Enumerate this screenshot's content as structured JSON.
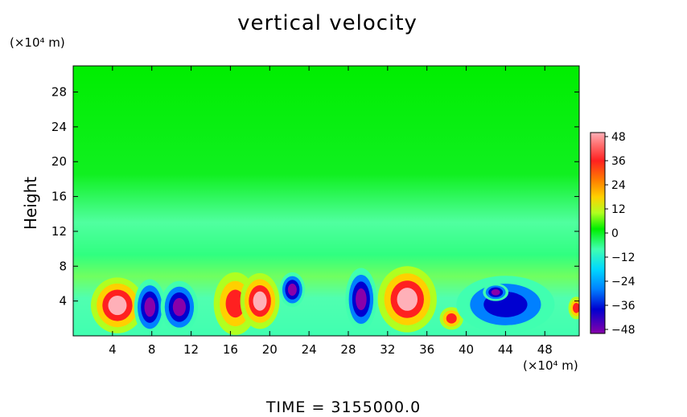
{
  "chart_data": {
    "type": "heatmap",
    "title": "vertical velocity",
    "ylabel": "Height",
    "x_units": "(×10⁴ m)",
    "y_units": "(×10⁴ m)",
    "footer": "TIME  =  3155000.0",
    "xlim": [
      0,
      51.5
    ],
    "ylim": [
      0,
      31
    ],
    "x_ticks": [
      4,
      8,
      12,
      16,
      20,
      24,
      28,
      32,
      36,
      40,
      44,
      48
    ],
    "y_ticks": [
      4,
      8,
      12,
      16,
      20,
      24,
      28
    ],
    "colorbar": {
      "ticks": [
        48,
        36,
        24,
        12,
        0,
        -12,
        -24,
        -36,
        -48
      ],
      "range": [
        -48,
        48
      ],
      "colors": [
        "#ffb0b8",
        "#ff2020",
        "#ff8000",
        "#ffd000",
        "#b0ff20",
        "#00ee00",
        "#40ffb0",
        "#00d8ff",
        "#0080ff",
        "#0000d0",
        "#8800aa"
      ]
    },
    "features": [
      {
        "x": 4.5,
        "y": 3.5,
        "rx": 2.7,
        "ry": 3.2,
        "value": 48
      },
      {
        "x": 7.8,
        "y": 3.3,
        "rx": 1.6,
        "ry": 3.2,
        "value": -48
      },
      {
        "x": 10.8,
        "y": 3.3,
        "rx": 1.9,
        "ry": 3.0,
        "value": -48
      },
      {
        "x": 16.5,
        "y": 3.7,
        "rx": 2.2,
        "ry": 3.6,
        "value": 40
      },
      {
        "x": 19.0,
        "y": 4.0,
        "rx": 2.0,
        "ry": 3.2,
        "value": 48
      },
      {
        "x": 22.3,
        "y": 5.3,
        "rx": 1.3,
        "ry": 2.0,
        "value": -48
      },
      {
        "x": 29.3,
        "y": 4.2,
        "rx": 1.6,
        "ry": 3.6,
        "value": -48
      },
      {
        "x": 34.0,
        "y": 4.2,
        "rx": 3.0,
        "ry": 3.8,
        "value": 48
      },
      {
        "x": 38.5,
        "y": 2.0,
        "rx": 1.2,
        "ry": 1.3,
        "value": 36
      },
      {
        "x": 44.0,
        "y": 3.6,
        "rx": 5.0,
        "ry": 3.3,
        "value": -36
      },
      {
        "x": 43.0,
        "y": 5.0,
        "rx": 1.3,
        "ry": 1.0,
        "value": -48
      },
      {
        "x": 51.2,
        "y": 3.2,
        "rx": 0.8,
        "ry": 1.3,
        "value": 36
      }
    ]
  }
}
